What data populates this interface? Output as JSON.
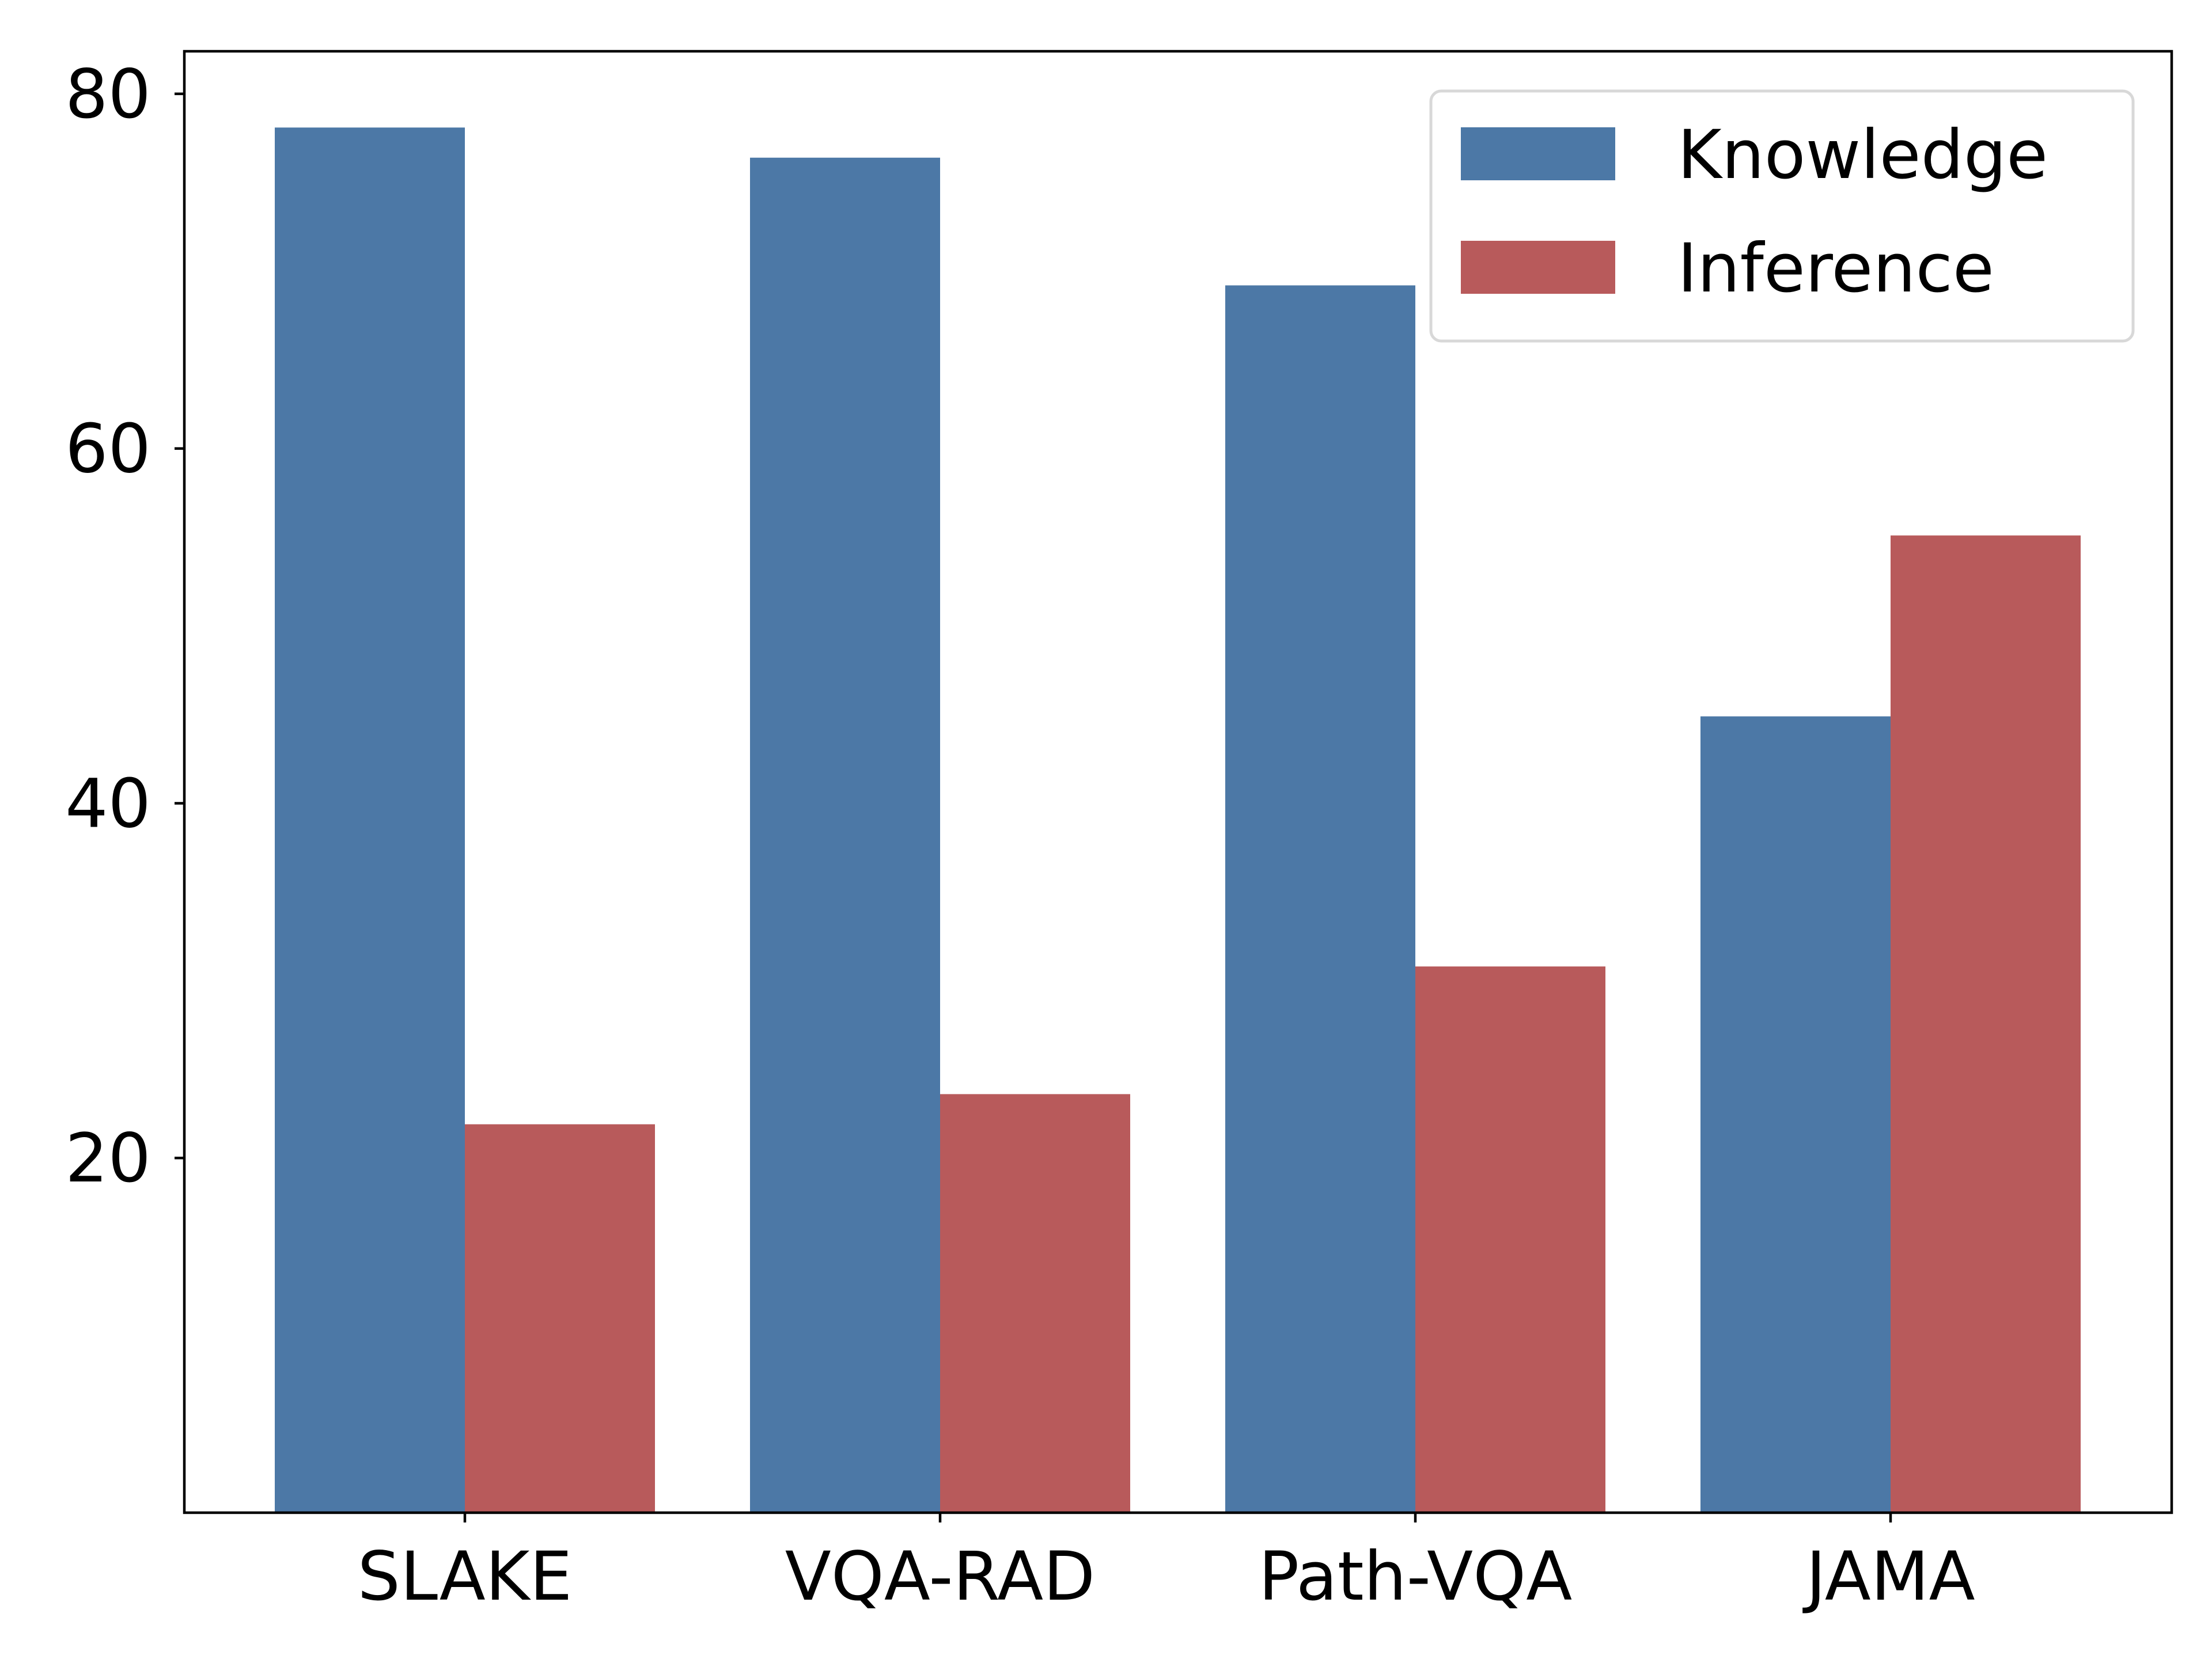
{
  "chart_data": {
    "type": "bar",
    "title": "",
    "xlabel": "",
    "ylabel": "",
    "categories": [
      "SLAKE",
      "VQA-RAD",
      "Path-VQA",
      "JAMA"
    ],
    "series": [
      {
        "name": "Knowledge",
        "color": "#4c78a6",
        "values": [
          78.1,
          76.4,
          69.2,
          44.9
        ]
      },
      {
        "name": "Inference",
        "color": "#b85a5b",
        "values": [
          21.9,
          23.6,
          30.8,
          55.1
        ]
      }
    ],
    "ylim": [
      0,
      82.4
    ],
    "yticks": [
      20,
      40,
      60,
      80
    ],
    "legend_position": "top-right",
    "grid": false
  }
}
